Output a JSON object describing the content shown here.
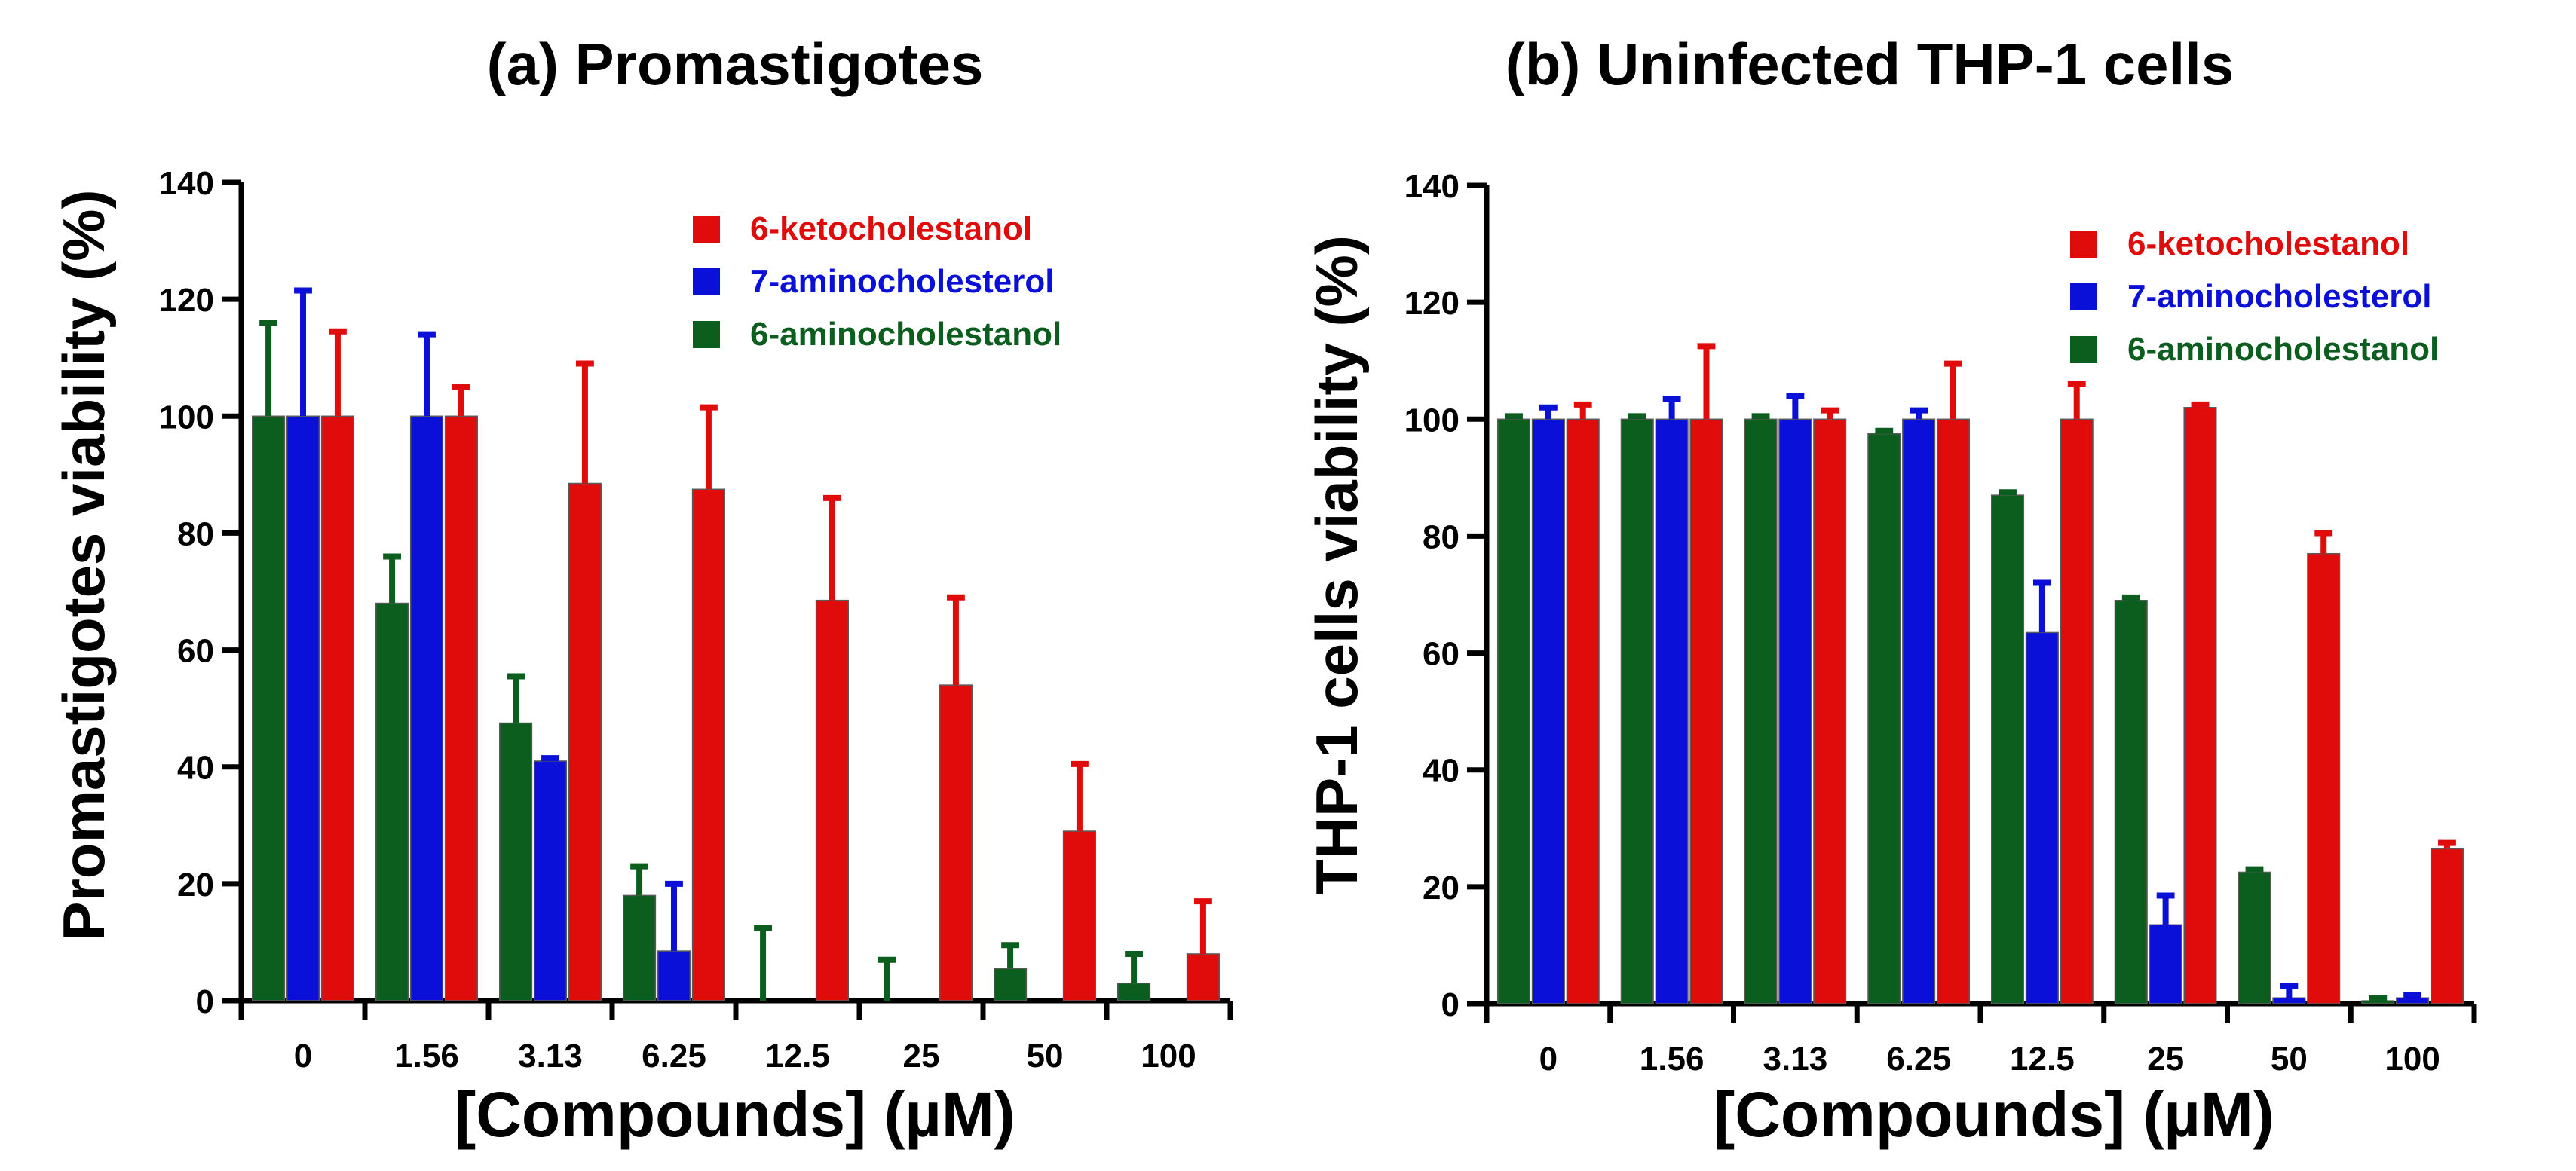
{
  "chart_data": [
    {
      "type": "bar",
      "title": "(a) Promastigotes",
      "xlabel": "[Compounds] (µM)",
      "ylabel": "Promastigotes viability (%)",
      "ylim": [
        0,
        140
      ],
      "yticks": [
        "0",
        "20",
        "40",
        "60",
        "80",
        "100",
        "120",
        "140"
      ],
      "categories": [
        "0",
        "1.56",
        "3.13",
        "6.25",
        "12.5",
        "25",
        "50",
        "100"
      ],
      "legend_position": "top-right",
      "series": [
        {
          "name": "6-aminocholestanol",
          "color": "#0b5e1e",
          "values": [
            100,
            68,
            47.5,
            18,
            0,
            0,
            5.5,
            3
          ],
          "errors": [
            16,
            8,
            8,
            5,
            12.5,
            7,
            4,
            5
          ]
        },
        {
          "name": "7-aminocholesterol",
          "color": "#0a10d8",
          "values": [
            100,
            100,
            41,
            8.5,
            null,
            null,
            null,
            null
          ],
          "errors": [
            21.5,
            14,
            0.5,
            11.5,
            null,
            null,
            null,
            null
          ]
        },
        {
          "name": "6-ketocholestanol",
          "color": "#e00b0b",
          "values": [
            100,
            100,
            88.5,
            87.5,
            68.5,
            54,
            29,
            8
          ],
          "errors": [
            14.5,
            5,
            20.5,
            14,
            17.5,
            15,
            11.5,
            9
          ]
        }
      ],
      "legend_order": [
        "6-ketocholestanol",
        "7-aminocholesterol",
        "6-aminocholestanol"
      ]
    },
    {
      "type": "bar",
      "title": "(b) Uninfected THP-1 cells",
      "xlabel": "[Compounds] (µM)",
      "ylabel": "THP-1 cells viability (%)",
      "ylim": [
        0,
        140
      ],
      "yticks": [
        "0",
        "20",
        "40",
        "60",
        "80",
        "100",
        "120",
        "140"
      ],
      "categories": [
        "0",
        "1.56",
        "3.13",
        "6.25",
        "12.5",
        "25",
        "50",
        "100"
      ],
      "legend_position": "top-right",
      "series": [
        {
          "name": "6-aminocholestanol",
          "color": "#0b5e1e",
          "values": [
            100,
            100,
            100,
            97.5,
            87,
            69,
            22.5,
            0.5
          ],
          "errors": [
            0.5,
            0.5,
            0.5,
            0.5,
            0.5,
            0.5,
            0.5,
            0.5
          ]
        },
        {
          "name": "7-aminocholesterol",
          "color": "#0a10d8",
          "values": [
            100,
            100,
            100,
            100,
            63.5,
            13.5,
            1,
            1
          ],
          "errors": [
            2,
            3.5,
            4,
            1.5,
            8.5,
            5,
            2,
            0.5
          ]
        },
        {
          "name": "6-ketocholestanol",
          "color": "#e00b0b",
          "values": [
            100,
            100,
            100,
            100,
            100,
            102,
            77,
            26.5
          ],
          "errors": [
            2.5,
            12.5,
            1.5,
            9.5,
            6,
            0.5,
            3.5,
            1
          ]
        }
      ],
      "legend_order": [
        "6-ketocholestanol",
        "7-aminocholesterol",
        "6-aminocholestanol"
      ]
    }
  ]
}
